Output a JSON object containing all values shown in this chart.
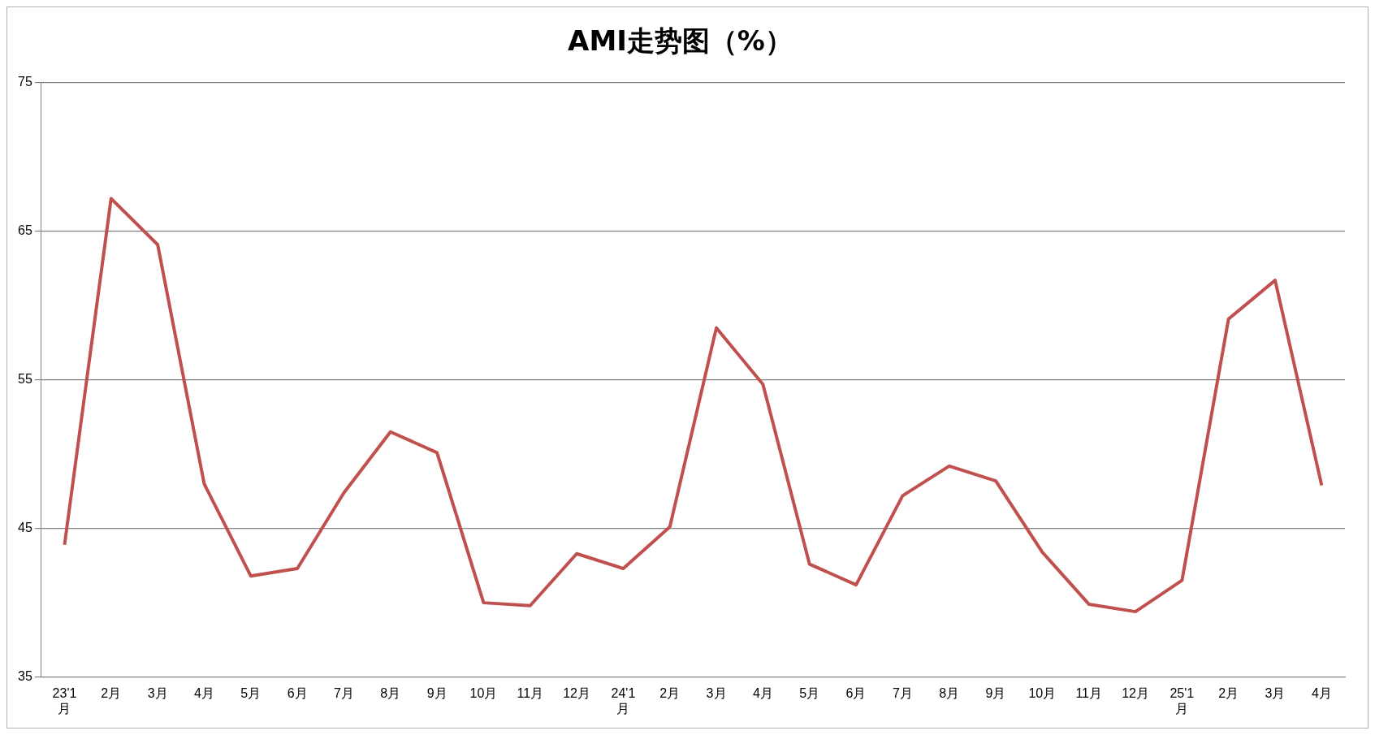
{
  "chart_data": {
    "type": "line",
    "title": "AMI走势图（%）",
    "categories": [
      "23'1月",
      "2月",
      "3月",
      "4月",
      "5月",
      "6月",
      "7月",
      "8月",
      "9月",
      "10月",
      "11月",
      "12月",
      "24'1月",
      "2月",
      "3月",
      "4月",
      "5月",
      "6月",
      "7月",
      "8月",
      "9月",
      "10月",
      "11月",
      "12月",
      "25'1月",
      "2月",
      "3月",
      "4月"
    ],
    "series": [
      {
        "color": "#c0504d",
        "values": [
          43.9,
          67.2,
          64.1,
          48.0,
          41.8,
          42.3,
          47.4,
          51.5,
          50.1,
          40.0,
          39.8,
          43.3,
          42.3,
          45.1,
          58.5,
          54.7,
          42.6,
          41.2,
          47.2,
          49.2,
          48.2,
          43.4,
          39.9,
          39.4,
          41.5,
          59.1,
          61.7,
          47.9
        ]
      }
    ],
    "ylim": [
      35,
      75
    ],
    "yticks": [
      35,
      45,
      55,
      65,
      75
    ],
    "grid": "y",
    "legend": false,
    "marker": "none",
    "line_style": "solid"
  }
}
